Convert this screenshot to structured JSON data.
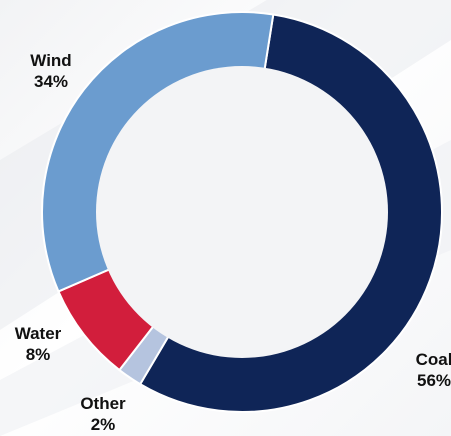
{
  "chart_data": {
    "type": "pie",
    "subtype": "donut",
    "categories": [
      "Coal",
      "Other",
      "Water",
      "Wind"
    ],
    "values": [
      56,
      2,
      8,
      34
    ],
    "colors": [
      "#0f2557",
      "#b5c4df",
      "#d21e3c",
      "#6b9ccf"
    ],
    "labels": [
      {
        "name": "Coal",
        "value": "56%"
      },
      {
        "name": "Other",
        "value": "2%"
      },
      {
        "name": "Water",
        "value": "8%"
      },
      {
        "name": "Wind",
        "value": "34%"
      }
    ],
    "legend": "none",
    "title": ""
  }
}
